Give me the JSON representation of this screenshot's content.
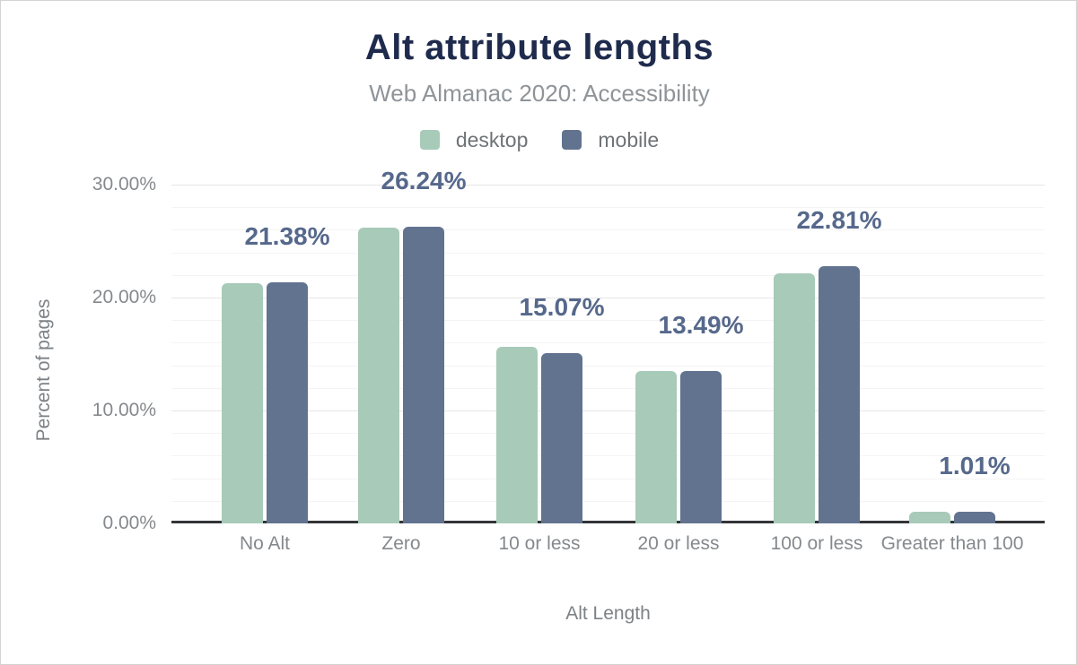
{
  "header": {
    "title": "Alt attribute lengths",
    "subtitle": "Web Almanac 2020: Accessibility"
  },
  "legend": {
    "items": [
      {
        "label": "desktop",
        "color": "#a8cab9"
      },
      {
        "label": "mobile",
        "color": "#627390"
      }
    ]
  },
  "axes": {
    "x_title": "Alt Length",
    "y_title": "Percent of pages"
  },
  "colors": {
    "title": "#1f2b4d",
    "subtitle": "#8f9499",
    "desktop_bar": "#a8cab9",
    "mobile_bar": "#627390",
    "data_label": "#56688b",
    "axis_line": "#333538",
    "major_grid": "#e6e6e6",
    "minor_grid": "#f4f4f4",
    "tick_text": "#85898d"
  },
  "chart_data": {
    "type": "bar",
    "title": "Alt attribute lengths",
    "subtitle": "Web Almanac 2020: Accessibility",
    "xlabel": "Alt Length",
    "ylabel": "Percent of pages",
    "categories": [
      "No Alt",
      "Zero",
      "10 or less",
      "20 or less",
      "100 or less",
      "Greater than 100"
    ],
    "series": [
      {
        "name": "desktop",
        "color": "#a8cab9",
        "values": [
          21.27,
          26.17,
          15.63,
          13.46,
          22.14,
          1.03
        ],
        "values_estimated_from_gridlines": true
      },
      {
        "name": "mobile",
        "color": "#627390",
        "values": [
          21.38,
          26.24,
          15.07,
          13.49,
          22.81,
          1.01
        ]
      }
    ],
    "data_labels": [
      "21.38%",
      "26.24%",
      "15.07%",
      "13.49%",
      "22.81%",
      "1.01%"
    ],
    "data_labels_series": "mobile",
    "yticks": {
      "values": [
        0,
        10,
        20,
        30
      ],
      "labels": [
        "0.00%",
        "10.00%",
        "20.00%",
        "30.00%"
      ]
    },
    "ylim": [
      0,
      30
    ],
    "minor_grid_step_percent": 2,
    "grid": true,
    "legend_position": "top"
  }
}
